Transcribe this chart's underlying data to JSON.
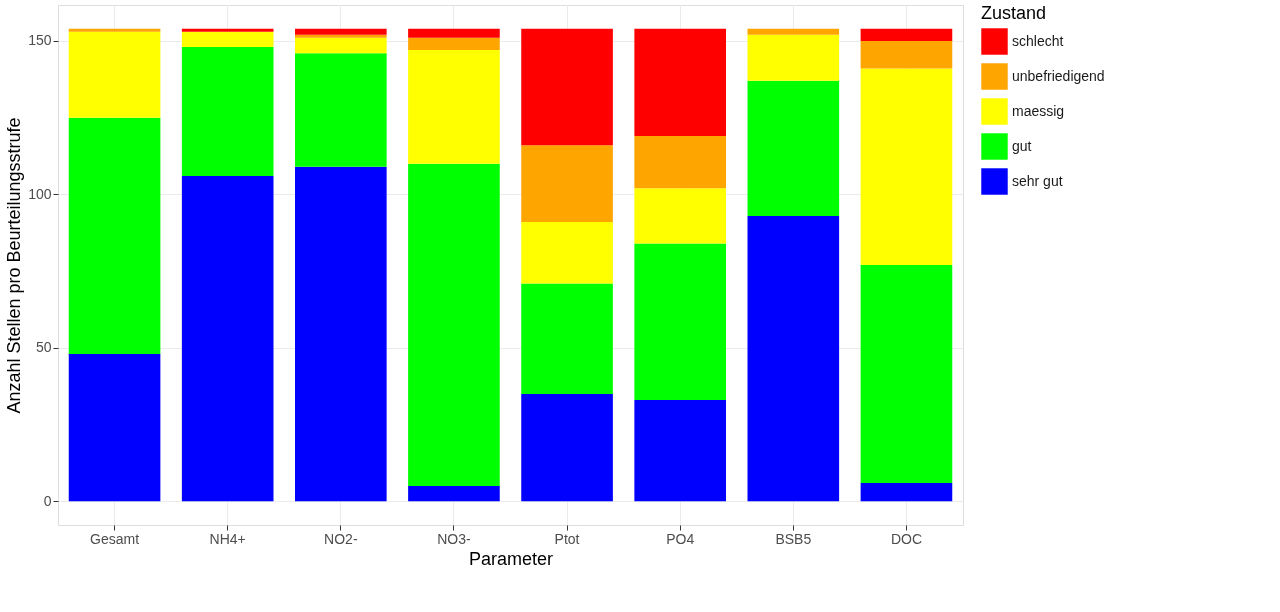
{
  "chart_data": {
    "type": "bar",
    "stacked": true,
    "xlabel": "Parameter",
    "ylabel": "Anzahl Stellen pro Beurteilungsstrufe",
    "legend_title": "Zustand",
    "legend": "right",
    "categories": [
      "Gesamt",
      "NH4+",
      "NO2-",
      "NO3-",
      "Ptot",
      "PO4",
      "BSB5",
      "DOC"
    ],
    "series": [
      {
        "name": "sehr gut",
        "color": "#0000ff",
        "values": [
          48,
          106,
          109,
          5,
          35,
          33,
          93,
          6
        ]
      },
      {
        "name": "gut",
        "color": "#00ff00",
        "values": [
          77,
          42,
          37,
          105,
          36,
          51,
          44,
          71
        ]
      },
      {
        "name": "maessig",
        "color": "#ffff00",
        "values": [
          28,
          5,
          5,
          37,
          20,
          18,
          15,
          64
        ]
      },
      {
        "name": "unbefriedigend",
        "color": "#ffa500",
        "values": [
          1,
          0,
          1,
          4,
          25,
          17,
          2,
          9
        ]
      },
      {
        "name": "schlecht",
        "color": "#ff0000",
        "values": [
          0,
          1,
          2,
          3,
          38,
          35,
          0,
          4
        ]
      }
    ],
    "ylim": [
      -7.7,
      161.7
    ],
    "yticks": [
      0,
      50,
      100,
      150
    ],
    "grid": true
  }
}
